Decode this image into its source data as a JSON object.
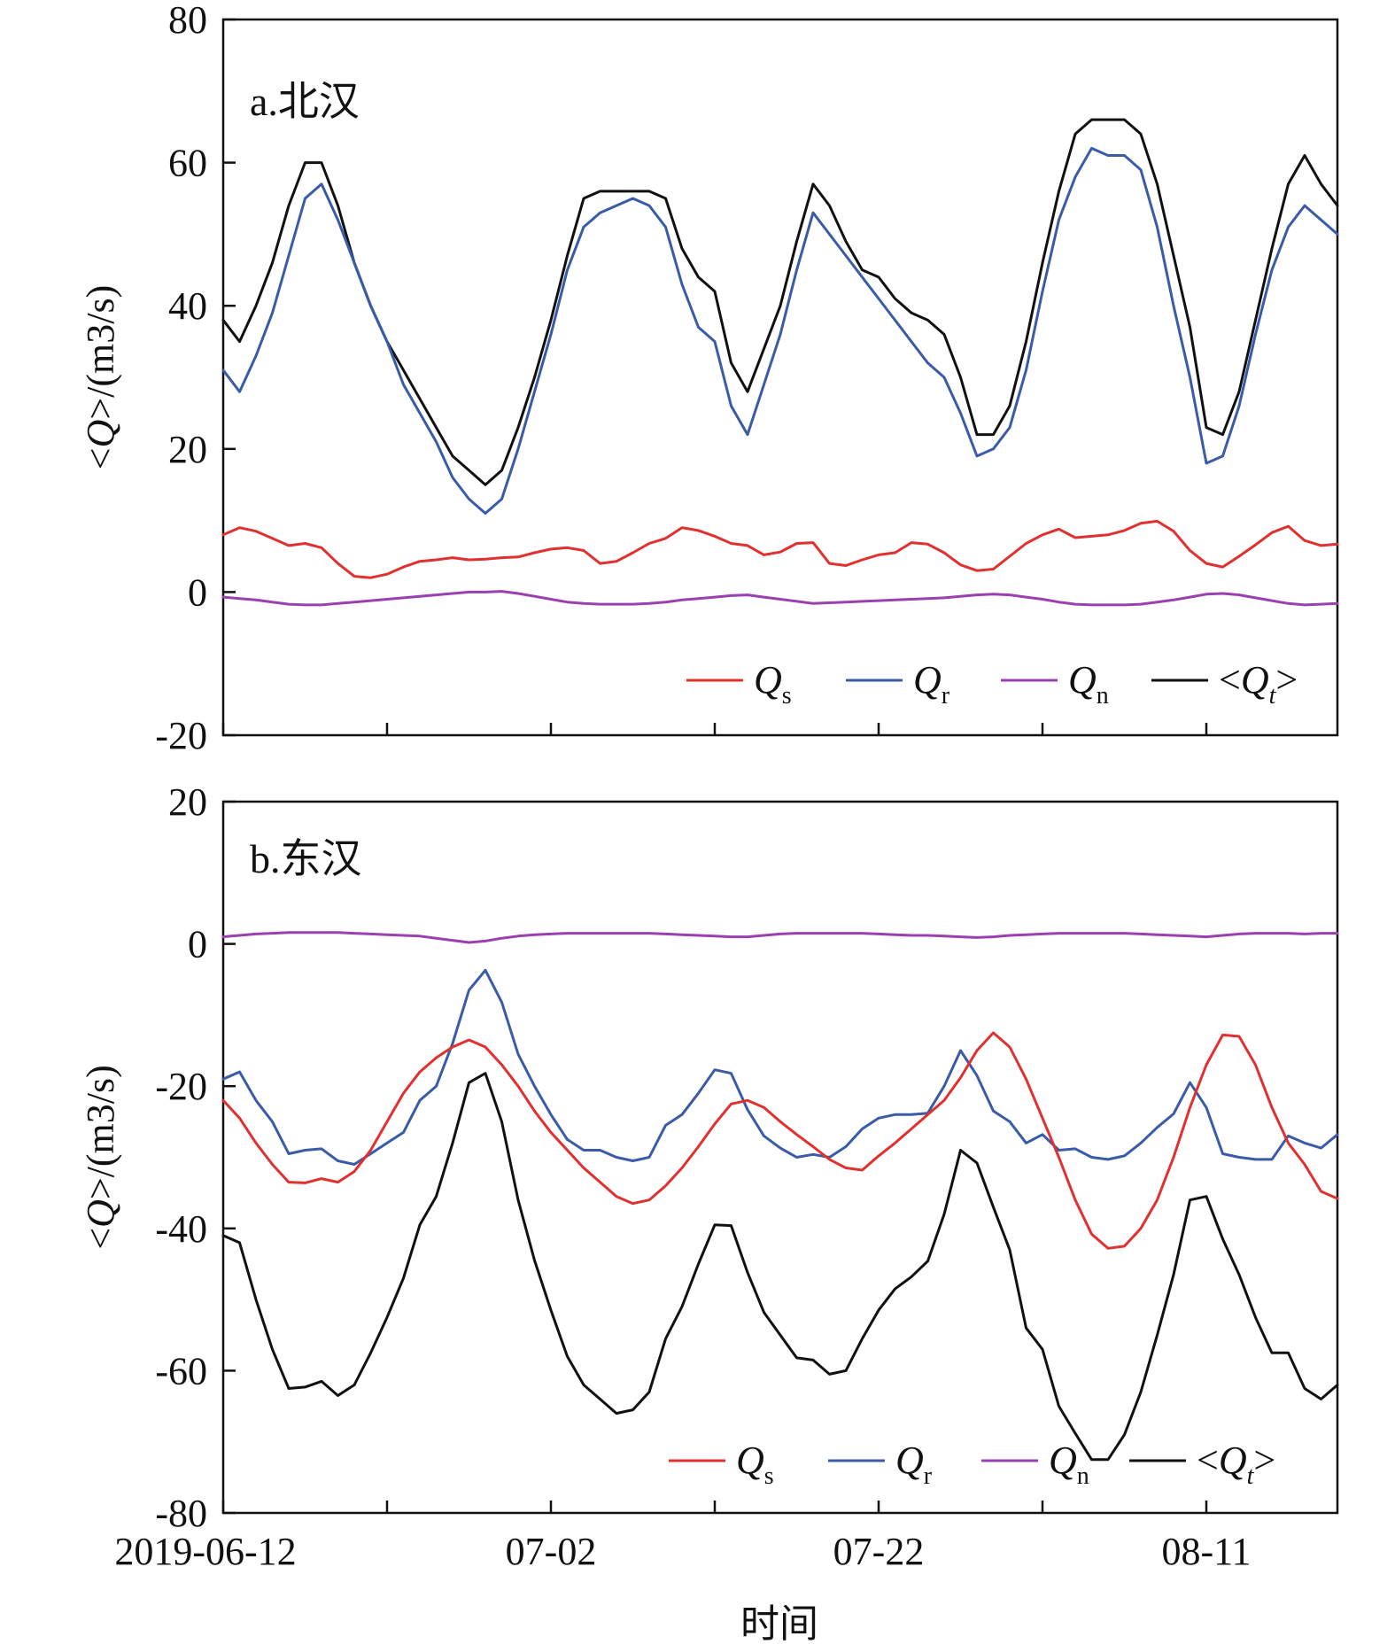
{
  "chart_data": [
    {
      "type": "line",
      "panel_label": "a.北汉",
      "ylabel": "<Q>/(m3/s)",
      "xlabel": "",
      "ylim": [
        -20,
        80
      ],
      "yticks": [
        -20,
        0,
        20,
        40,
        60,
        80
      ],
      "ytick_labels": [
        "-20",
        "0",
        "20",
        "40",
        "60",
        "80"
      ],
      "xlim": [
        0,
        68
      ],
      "xticks": [
        0,
        10,
        20,
        30,
        40,
        50,
        60
      ],
      "xtick_labels": [
        "",
        "",
        "",
        "",
        "",
        "",
        ""
      ],
      "grid": false,
      "legend_position": "bottom-right",
      "colors": {
        "Qs": "#e03030",
        "Qr": "#3a5ba8",
        "Qn": "#9a40b0",
        "Qt": "#111111"
      },
      "legend": [
        {
          "key": "Qs",
          "main": "Q",
          "sub": "s"
        },
        {
          "key": "Qr",
          "main": "Q",
          "sub": "r"
        },
        {
          "key": "Qn",
          "main": "Q",
          "sub": "n"
        },
        {
          "key": "Qt",
          "main": "<Q",
          "sub": "t",
          "suffix": ">"
        }
      ],
      "series": [
        {
          "key": "Qt",
          "values": [
            38,
            35,
            40,
            46,
            54,
            60,
            60,
            54,
            46,
            40,
            35,
            31,
            27,
            23,
            19,
            17,
            15,
            17,
            23,
            30,
            38,
            47,
            55,
            56,
            56,
            56,
            56,
            55,
            48,
            44,
            42,
            32,
            28,
            34,
            40,
            49,
            57,
            54,
            49,
            45,
            44,
            41,
            39,
            38,
            36,
            30,
            22,
            22,
            26,
            35,
            46,
            56,
            64,
            66,
            66,
            66,
            64,
            57,
            47,
            37,
            23,
            22,
            28,
            38,
            48,
            57,
            61,
            57,
            54
          ]
        },
        {
          "key": "Qr",
          "values": [
            31,
            28,
            33,
            39,
            47,
            55,
            57,
            52,
            46,
            40,
            35,
            29,
            25,
            21,
            16,
            13,
            11,
            13,
            20,
            28,
            36,
            45,
            51,
            53,
            54,
            55,
            54,
            51,
            43,
            37,
            35,
            26,
            22,
            29,
            36,
            45,
            53,
            50,
            47,
            44,
            41,
            38,
            35,
            32,
            30,
            25,
            19,
            20,
            23,
            31,
            42,
            52,
            58,
            62,
            61,
            61,
            59,
            51,
            40,
            30,
            18,
            19,
            26,
            36,
            45,
            51,
            54,
            52,
            50
          ]
        },
        {
          "key": "Qs",
          "values": [
            8,
            9,
            8.5,
            7.5,
            6.5,
            6.8,
            6.2,
            4,
            2.2,
            2,
            2.5,
            3.5,
            4.3,
            4.5,
            4.8,
            4.5,
            4.6,
            4.8,
            4.9,
            5.5,
            6,
            6.2,
            5.8,
            4,
            4.3,
            5.5,
            6.8,
            7.5,
            9,
            8.6,
            7.8,
            6.8,
            6.5,
            5.2,
            5.6,
            6.8,
            6.9,
            4,
            3.7,
            4.5,
            5.2,
            5.5,
            6.9,
            6.7,
            5.5,
            3.8,
            3,
            3.2,
            5,
            6.8,
            8,
            8.8,
            7.6,
            7.8,
            8,
            8.6,
            9.6,
            9.9,
            8.5,
            5.8,
            4,
            3.5,
            5,
            6.6,
            8.3,
            9.2,
            7.2,
            6.5,
            6.7
          ]
        },
        {
          "key": "Qn",
          "values": [
            -0.7,
            -0.9,
            -1.1,
            -1.4,
            -1.7,
            -1.8,
            -1.8,
            -1.6,
            -1.4,
            -1.2,
            -1,
            -0.8,
            -0.6,
            -0.4,
            -0.2,
            0,
            0,
            0.1,
            -0.2,
            -0.6,
            -1,
            -1.4,
            -1.6,
            -1.7,
            -1.7,
            -1.7,
            -1.6,
            -1.4,
            -1.1,
            -0.9,
            -0.7,
            -0.5,
            -0.4,
            -0.7,
            -1,
            -1.3,
            -1.6,
            -1.5,
            -1.4,
            -1.3,
            -1.2,
            -1.1,
            -1,
            -0.9,
            -0.8,
            -0.6,
            -0.4,
            -0.3,
            -0.4,
            -0.7,
            -1,
            -1.4,
            -1.7,
            -1.8,
            -1.8,
            -1.8,
            -1.7,
            -1.4,
            -1.1,
            -0.7,
            -0.3,
            -0.2,
            -0.4,
            -0.8,
            -1.2,
            -1.6,
            -1.8,
            -1.7,
            -1.6
          ]
        }
      ]
    },
    {
      "type": "line",
      "panel_label": "b.东汉",
      "ylabel": "<Q>/(m3/s)",
      "xlabel": "时间",
      "ylim": [
        -80,
        20
      ],
      "yticks": [
        -80,
        -60,
        -40,
        -20,
        0,
        20
      ],
      "ytick_labels": [
        "-80",
        "-60",
        "-40",
        "-20",
        "0",
        "20"
      ],
      "xlim": [
        0,
        68
      ],
      "xticks": [
        0,
        10,
        20,
        30,
        40,
        50,
        60
      ],
      "xtick_labels": [
        "2019-06-12",
        "",
        "07-02",
        "",
        "07-22",
        "",
        "08-11"
      ],
      "grid": false,
      "legend_position": "bottom-right",
      "colors": {
        "Qs": "#e03030",
        "Qr": "#3a5ba8",
        "Qn": "#9a40b0",
        "Qt": "#111111"
      },
      "legend": [
        {
          "key": "Qs",
          "main": "Q",
          "sub": "s"
        },
        {
          "key": "Qr",
          "main": "Q",
          "sub": "r"
        },
        {
          "key": "Qn",
          "main": "Q",
          "sub": "n"
        },
        {
          "key": "Qt",
          "main": "<Q",
          "sub": "t",
          "suffix": ">"
        }
      ],
      "series": [
        {
          "key": "Qr",
          "values": [
            -19,
            -18,
            -22,
            -25,
            -29.5,
            -29,
            -28.8,
            -30.5,
            -31,
            -29.5,
            -28,
            -26.5,
            -22,
            -20,
            -14,
            -6.5,
            -3.7,
            -8.2,
            -15.5,
            -20,
            -24,
            -27.5,
            -29,
            -29,
            -30,
            -30.5,
            -30,
            -25.5,
            -24,
            -21,
            -17.7,
            -18.2,
            -23.3,
            -27,
            -28.7,
            -30,
            -29.6,
            -30,
            -28.5,
            -26,
            -24.5,
            -24,
            -24,
            -23.8,
            -20,
            -15,
            -18.5,
            -23.5,
            -25,
            -28,
            -26.8,
            -29,
            -28.8,
            -30,
            -30.3,
            -29.8,
            -28,
            -25.8,
            -23.9,
            -19.5,
            -23,
            -29.5,
            -30,
            -30.3,
            -30.3,
            -27,
            -28,
            -28.7,
            -26.8
          ]
        },
        {
          "key": "Qs",
          "values": [
            -22,
            -24.5,
            -28,
            -31,
            -33.5,
            -33.6,
            -33,
            -33.5,
            -32,
            -29,
            -25,
            -21,
            -18,
            -16,
            -14.5,
            -13.5,
            -14.5,
            -17,
            -20,
            -23.5,
            -26.5,
            -29,
            -31.5,
            -33.5,
            -35.5,
            -36.5,
            -36,
            -34,
            -31.5,
            -28.5,
            -25.3,
            -22.5,
            -22,
            -23,
            -25,
            -26.8,
            -28.5,
            -30.3,
            -31.5,
            -31.8,
            -29.8,
            -28,
            -26,
            -24,
            -22,
            -18.8,
            -15,
            -12.5,
            -14.5,
            -19,
            -24.5,
            -30,
            -36,
            -40.8,
            -42.8,
            -42.5,
            -40,
            -36,
            -30,
            -23,
            -17,
            -12.8,
            -13,
            -17,
            -23,
            -28,
            -31,
            -34.8,
            -35.8
          ]
        },
        {
          "key": "Qn",
          "values": [
            1,
            1.2,
            1.4,
            1.5,
            1.6,
            1.6,
            1.6,
            1.6,
            1.5,
            1.4,
            1.3,
            1.2,
            1.1,
            0.8,
            0.5,
            0.2,
            0.4,
            0.8,
            1.1,
            1.3,
            1.4,
            1.5,
            1.5,
            1.5,
            1.5,
            1.5,
            1.5,
            1.4,
            1.3,
            1.2,
            1.1,
            1,
            1,
            1.2,
            1.4,
            1.5,
            1.5,
            1.5,
            1.5,
            1.5,
            1.4,
            1.3,
            1.2,
            1.2,
            1.1,
            1,
            0.9,
            1,
            1.2,
            1.3,
            1.4,
            1.5,
            1.5,
            1.5,
            1.5,
            1.5,
            1.4,
            1.3,
            1.2,
            1.1,
            1,
            1.2,
            1.4,
            1.5,
            1.5,
            1.5,
            1.4,
            1.5,
            1.5
          ]
        },
        {
          "key": "Qt",
          "values": [
            -41,
            -42,
            -50,
            -57,
            -62.5,
            -62.3,
            -61.5,
            -63.5,
            -62,
            -57.5,
            -52.5,
            -47,
            -39.5,
            -35.5,
            -28,
            -19.5,
            -18.2,
            -25,
            -36,
            -44.5,
            -51.5,
            -58,
            -62,
            -64,
            -66,
            -65.5,
            -63,
            -55.5,
            -51,
            -45,
            -39.5,
            -39.6,
            -46.2,
            -51.8,
            -55,
            -58.2,
            -58.5,
            -60.5,
            -60,
            -55.5,
            -51.5,
            -48.5,
            -46.8,
            -44.6,
            -38,
            -29,
            -30.8,
            -37,
            -43,
            -54,
            -57,
            -65,
            -68.8,
            -72.5,
            -72.5,
            -69,
            -63,
            -55,
            -46.5,
            -36,
            -35.5,
            -41.5,
            -46.5,
            -52.5,
            -57.5,
            -57.5,
            -62.5,
            -64,
            -62
          ]
        }
      ]
    }
  ]
}
